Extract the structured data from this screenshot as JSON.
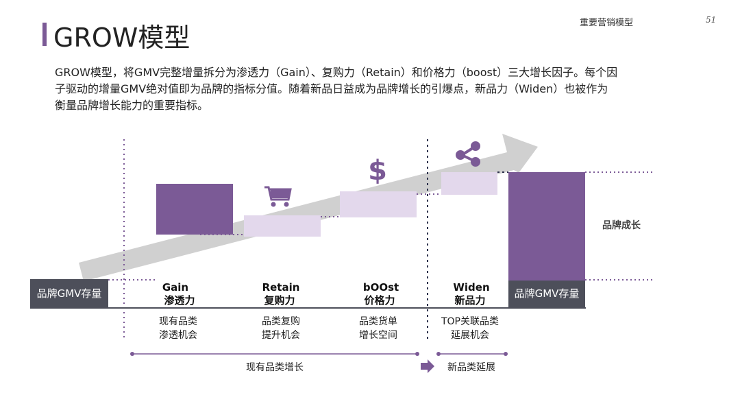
{
  "header": {
    "title": "GROW模型",
    "section_label": "重要营销模型",
    "page_number": "51"
  },
  "intro": {
    "lines": [
      "GROW模型，将GMV完整增量拆分为渗透力（Gain）、复购力（Retain）和价格力（boost）三大增长因子。每个因",
      "子驱动的增量GMV绝对值即为品牌的指标分值。随着新品日益成为品牌增长的引爆点，新品力（Widen）也被作为",
      "衡量品牌增长能力的重要指标。"
    ]
  },
  "diagram": {
    "stock_label": "品牌GMV存量",
    "growth_label": "品牌成长",
    "factors": [
      {
        "en": "Gain",
        "zh": "渗透力",
        "desc1": "现有品类",
        "desc2": "渗透机会",
        "icon": "none"
      },
      {
        "en": "Retain",
        "zh": "复购力",
        "desc1": "品类复购",
        "desc2": "提升机会",
        "icon": "shopping-cart-icon"
      },
      {
        "en": "bOOst",
        "zh": "价格力",
        "desc1": "品类货单",
        "desc2": "增长空间",
        "icon": "dollar-sign-icon"
      },
      {
        "en": "Widen",
        "zh": "新品力",
        "desc1": "TOP关联品类",
        "desc2": "延展机会",
        "icon": "share-icon"
      }
    ],
    "phases": {
      "existing": "现有品类增长",
      "new": "新品类延展"
    },
    "colors": {
      "dark_purple": "#7b5a96",
      "light_purple": "#e3d8ec",
      "dark_gray": "#4d4f5a",
      "arrow_gray": "#c8c8c8",
      "dots": "#7b5a96"
    }
  }
}
